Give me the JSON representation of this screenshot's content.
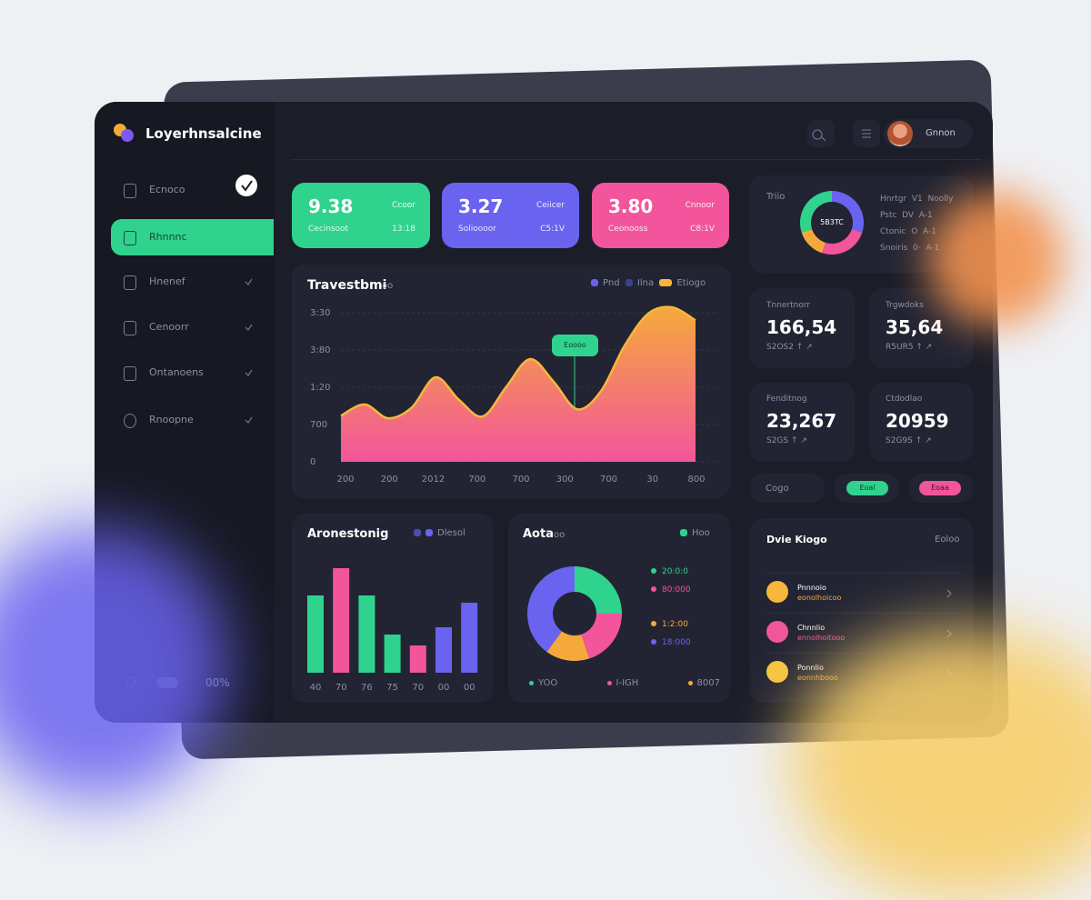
{
  "brand": "Loyerhnsalcine",
  "header": {
    "user": "Gnnon"
  },
  "sidebar": {
    "items": [
      "Ecnoco",
      "Rhnnnc",
      "Hnenef",
      "Cenoorr",
      "Ontanoens",
      "Rnoopne"
    ],
    "footer": "00%"
  },
  "stats": [
    {
      "value": "9.38",
      "label": "Ccoor",
      "caption": "Cecinsoot",
      "meta": "13:18"
    },
    {
      "value": "3.27",
      "label": "Ceiicer",
      "caption": "Solioooor",
      "meta": "C5:1V"
    },
    {
      "value": "3.80",
      "label": "Cnnoor",
      "caption": "Ceonooss",
      "meta": "C8:1V"
    }
  ],
  "trend": {
    "type": "area",
    "title": "Travestbmi",
    "tag": "oo",
    "legend": [
      {
        "name": "Pnd",
        "color": "#6a63f0"
      },
      {
        "name": "Ilna",
        "color": "#3d4290"
      },
      {
        "name": "Etiogo",
        "color": "#f6b73c"
      }
    ],
    "callout": "Eoooo",
    "values": [
      1.24,
      1.54,
      1.17,
      1.46,
      2.27,
      1.66,
      1.22,
      2.02,
      2.76,
      2.15,
      1.41,
      1.9,
      3.12,
      3.98,
      4.15,
      3.8
    ],
    "ylim": [
      0,
      4.2
    ],
    "yticks": [
      0,
      {
        "value": 1,
        "label": "700"
      },
      {
        "value": 2,
        "label": "1:20"
      },
      {
        "value": 3,
        "label": "3:80"
      },
      {
        "value": 4,
        "label": "3:30"
      }
    ],
    "xticks": [
      "200",
      "200",
      "2012",
      "700",
      "700",
      "300",
      "700",
      "30",
      "800"
    ]
  },
  "bars": {
    "type": "bar",
    "title": "Aronestonig",
    "legend": "Dlesol",
    "categories": [
      "40",
      "70",
      "76",
      "75",
      "70",
      "00",
      "00"
    ],
    "values": [
      85,
      115,
      85,
      42,
      30,
      50,
      77
    ],
    "colors": [
      "#2fd38d",
      "#f2559b",
      "#2fd38d",
      "#2fd38d",
      "#f2559b",
      "#6a63f0",
      "#6a63f0"
    ],
    "ylim": [
      0,
      120
    ]
  },
  "ring": {
    "type": "pie",
    "title": "Aota",
    "tag": "oo",
    "legend": "Hoo",
    "series": [
      {
        "name": "20:0:0",
        "color": "#2fd38d",
        "value": 25
      },
      {
        "name": "80:000",
        "color": "#f2559b",
        "value": 20
      },
      {
        "name": "1:2:00",
        "color": "#f6a93b",
        "value": 15
      },
      {
        "name": "18:000",
        "color": "#6a63f0",
        "value": 40
      }
    ],
    "footer": [
      "YOO",
      "I-IGH",
      "8007"
    ]
  },
  "overview": {
    "type": "pie",
    "title": "Triio",
    "center": "5B3TC",
    "values": [
      30,
      25,
      15,
      30
    ],
    "colors": [
      "#6a63f0",
      "#f2559b",
      "#f6a93b",
      "#2fd38d"
    ],
    "legend": [
      "Hnrtgr  V1  Noolly",
      "Pstc  DV  A-1",
      "Ctonic  O  A-1",
      "Snoiris  0·  A-1"
    ]
  },
  "metrics": [
    {
      "label": "Tnnertnorr",
      "value": "166,54",
      "sub": "S2OS2 ↑ ↗"
    },
    {
      "label": "Trgwdoks",
      "value": "35,64",
      "sub": "R5UR5 ↑ ↗"
    },
    {
      "label": "Fenditnog",
      "value": "23,267",
      "sub": "S2GS ↑ ↗"
    },
    {
      "label": "Ctdodlao",
      "value": "20959",
      "sub": "S2G9S ↑ ↗"
    }
  ],
  "pills": {
    "label": "Cogo",
    "items": [
      "Eoal",
      "Eoaa"
    ]
  },
  "activity": {
    "title": "Dvie Kiogo",
    "action": "Eoloo",
    "items": [
      {
        "title": "Pnnnoio",
        "sub": "eonolhoicoo"
      },
      {
        "title": "Chnnlio",
        "sub": "ennolhoitooo"
      },
      {
        "title": "Ponnlio",
        "sub": "eonnhbooo"
      }
    ]
  }
}
